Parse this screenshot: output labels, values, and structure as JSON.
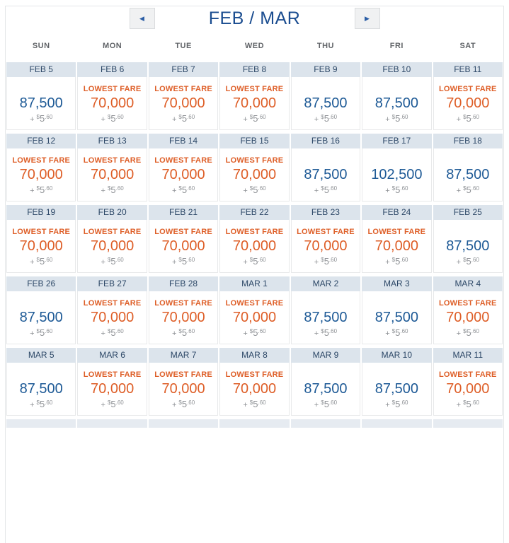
{
  "header": {
    "title": "FEB / MAR"
  },
  "icons": {
    "prev_month_glyph": "◀",
    "next_month_glyph": "▶"
  },
  "weekdays": [
    "SUN",
    "MON",
    "TUE",
    "WED",
    "THU",
    "FRI",
    "SAT"
  ],
  "lowest_fare_label": "LOWEST FARE",
  "every_day_taxes": {
    "plus": "+",
    "currency": "$",
    "dollars": "5",
    "cents": ".60"
  },
  "colors": {
    "title_blue": "#1b4d90",
    "regular_fare_blue": "#1e5a96",
    "lowest_fare_orange": "#de5e27",
    "date_strip_bg": "#dce4ec",
    "date_strip_text": "#2d4867",
    "taxes_gray": "#8f9296"
  },
  "weeks": [
    {
      "days": [
        {
          "date": "FEB 5",
          "miles": "87,500",
          "lowest": false
        },
        {
          "date": "FEB 6",
          "miles": "70,000",
          "lowest": true
        },
        {
          "date": "FEB 7",
          "miles": "70,000",
          "lowest": true
        },
        {
          "date": "FEB 8",
          "miles": "70,000",
          "lowest": true
        },
        {
          "date": "FEB 9",
          "miles": "87,500",
          "lowest": false
        },
        {
          "date": "FEB 10",
          "miles": "87,500",
          "lowest": false
        },
        {
          "date": "FEB 11",
          "miles": "70,000",
          "lowest": true
        }
      ]
    },
    {
      "days": [
        {
          "date": "FEB 12",
          "miles": "70,000",
          "lowest": true
        },
        {
          "date": "FEB 13",
          "miles": "70,000",
          "lowest": true
        },
        {
          "date": "FEB 14",
          "miles": "70,000",
          "lowest": true
        },
        {
          "date": "FEB 15",
          "miles": "70,000",
          "lowest": true
        },
        {
          "date": "FEB 16",
          "miles": "87,500",
          "lowest": false
        },
        {
          "date": "FEB 17",
          "miles": "102,500",
          "lowest": false
        },
        {
          "date": "FEB 18",
          "miles": "87,500",
          "lowest": false
        }
      ]
    },
    {
      "days": [
        {
          "date": "FEB 19",
          "miles": "70,000",
          "lowest": true
        },
        {
          "date": "FEB 20",
          "miles": "70,000",
          "lowest": true
        },
        {
          "date": "FEB 21",
          "miles": "70,000",
          "lowest": true
        },
        {
          "date": "FEB 22",
          "miles": "70,000",
          "lowest": true
        },
        {
          "date": "FEB 23",
          "miles": "70,000",
          "lowest": true
        },
        {
          "date": "FEB 24",
          "miles": "70,000",
          "lowest": true
        },
        {
          "date": "FEB 25",
          "miles": "87,500",
          "lowest": false
        }
      ]
    },
    {
      "days": [
        {
          "date": "FEB 26",
          "miles": "87,500",
          "lowest": false
        },
        {
          "date": "FEB 27",
          "miles": "70,000",
          "lowest": true
        },
        {
          "date": "FEB 28",
          "miles": "70,000",
          "lowest": true
        },
        {
          "date": "MAR 1",
          "miles": "70,000",
          "lowest": true
        },
        {
          "date": "MAR 2",
          "miles": "87,500",
          "lowest": false
        },
        {
          "date": "MAR 3",
          "miles": "87,500",
          "lowest": false
        },
        {
          "date": "MAR 4",
          "miles": "70,000",
          "lowest": true
        }
      ]
    },
    {
      "days": [
        {
          "date": "MAR 5",
          "miles": "87,500",
          "lowest": false
        },
        {
          "date": "MAR 6",
          "miles": "70,000",
          "lowest": true
        },
        {
          "date": "MAR 7",
          "miles": "70,000",
          "lowest": true
        },
        {
          "date": "MAR 8",
          "miles": "70,000",
          "lowest": true
        },
        {
          "date": "MAR 9",
          "miles": "87,500",
          "lowest": false
        },
        {
          "date": "MAR 10",
          "miles": "87,500",
          "lowest": false
        },
        {
          "date": "MAR 11",
          "miles": "70,000",
          "lowest": true
        }
      ]
    }
  ]
}
